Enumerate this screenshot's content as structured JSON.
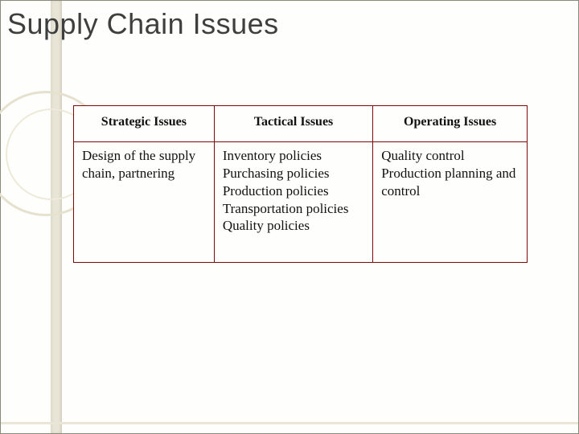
{
  "title": "Supply Chain Issues",
  "table": {
    "type": "table",
    "border_color": "#7b0909",
    "background_color": "#fefefc",
    "columns": [
      {
        "label": "Strategic Issues",
        "width_pct": 31,
        "align": "center"
      },
      {
        "label": "Tactical Issues",
        "width_pct": 35,
        "align": "center"
      },
      {
        "label": "Operating Issues",
        "width_pct": 34,
        "align": "center"
      }
    ],
    "rows": [
      [
        "Design of the supply chain, partnering",
        "Inventory policies\nPurchasing policies\nProduction policies\nTransportation policies\nQuality policies",
        "Quality control\nProduction planning and control"
      ]
    ],
    "header_fontsize": 16,
    "cell_fontsize": 17,
    "font_family": "Times New Roman"
  },
  "decoration": {
    "bar_color": "#e9e5d6",
    "circle_color": "#e6e1cf"
  },
  "title_style": {
    "font_family": "Arial",
    "fontsize": 36,
    "color": "#3f3f3f"
  }
}
